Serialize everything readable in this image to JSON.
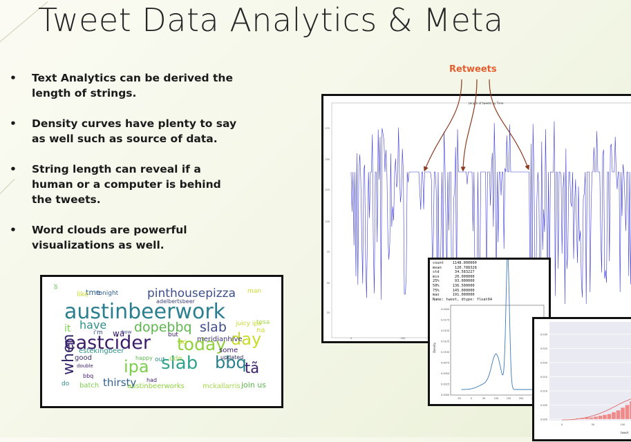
{
  "slide": {
    "title": "Tweet Data Analytics & Meta",
    "bullets": [
      "Text Analytics can be derived the length of strings.",
      "Density curves have plenty to say as well such as source of data.",
      "String length can reveal if a human or a computer is behind the tweets.",
      "Word clouds are powerful visualizations as well."
    ],
    "annotation": "Retweets",
    "accent_color": "#e35e2e"
  },
  "timeseries": {
    "title": "Length of tweets by Time",
    "y_ticks": [
      "275",
      "250",
      "225",
      "100",
      "75",
      "50",
      "25"
    ],
    "x_ticks": [
      "0",
      "200",
      "400"
    ],
    "line_color": "#3b3bd6"
  },
  "stats": {
    "lines": [
      "count    1148.000000",
      "mean      120.788328",
      "std       34.583227",
      "min       20.000000",
      "25%       93.000000",
      "50%      136.500000",
      "75%      145.000000",
      "max      191.000000",
      "Name: tweet, dtype: float64"
    ],
    "density_y_ticks": [
      "0.0200",
      "0.0175",
      "0.0150",
      "0.0125",
      "0.0100",
      "0.0075",
      "0.0050",
      "0.0025",
      "0.0000"
    ],
    "density_x_ticks": [
      "-50",
      "0",
      "50",
      "100",
      "150",
      "200",
      "250"
    ],
    "density_ylabel": "Density"
  },
  "histogram": {
    "y_ticks": [
      "0.030",
      "0.025",
      "0.020",
      "0.015",
      "0.010",
      "0.005",
      "0.000"
    ],
    "x_ticks": [
      "0",
      "50",
      "100"
    ],
    "xlabel": "tweet"
  },
  "wordcloud": {
    "words": [
      {
        "t": "austinbeerwork",
        "c": "#2a7f8f"
      },
      {
        "t": "eastcider",
        "c": "#3b1c6b"
      },
      {
        "t": "pinthousepizza",
        "c": "#3d4f8a"
      },
      {
        "t": "dopebbq",
        "c": "#5ab54a"
      },
      {
        "t": "slab",
        "c": "#3f4d8a"
      },
      {
        "t": "today",
        "c": "#8fd23c"
      },
      {
        "t": "day",
        "c": "#c9dc2a"
      },
      {
        "t": "ipa",
        "c": "#7ccf4b"
      },
      {
        "t": "slab",
        "c": "#2fa48a"
      },
      {
        "t": "bbq",
        "c": "#27808c"
      },
      {
        "t": "thirsty",
        "c": "#31628c"
      },
      {
        "t": "when",
        "c": "#35296b"
      },
      {
        "t": "have",
        "c": "#2f8f8a"
      },
      {
        "t": "meridianhive",
        "c": "#3b2f6e"
      },
      {
        "t": "tonight",
        "c": "#2f5e8c"
      },
      {
        "t": "tme",
        "c": "#2f5e8c"
      },
      {
        "t": "adelbertsbeer",
        "c": "#3d3f7a"
      },
      {
        "t": "austinbeerworks",
        "c": "#8fd23c"
      },
      {
        "t": "mckallarris",
        "c": "#a6d84a"
      },
      {
        "t": "join us",
        "c": "#5ab54a"
      },
      {
        "t": "tã",
        "c": "#3b1c6b"
      },
      {
        "t": "good",
        "c": "#35296b"
      },
      {
        "t": "updated",
        "c": "#2a2a5a"
      },
      {
        "t": "some",
        "c": "#3b1c6b"
      },
      {
        "t": "man",
        "c": "#c9dc2a"
      },
      {
        "t": "it",
        "c": "#7ccf4b"
      },
      {
        "t": "wa",
        "c": "#3b1c6b"
      },
      {
        "t": "ode",
        "c": "#a6d84a"
      },
      {
        "t": "bbq",
        "c": "#3b1c6b"
      },
      {
        "t": "batch",
        "c": "#7ccf4b"
      },
      {
        "t": "had",
        "c": "#3b1c6b"
      },
      {
        "t": "so",
        "c": "#c9dc2a"
      },
      {
        "t": "but",
        "c": "#3b1c6b"
      },
      {
        "t": "like",
        "c": "#c9dc2a"
      },
      {
        "t": "estekingbeer",
        "c": "#2f8f8a"
      },
      {
        "t": "happy",
        "c": "#5ab54a"
      },
      {
        "t": "out",
        "c": "#2f8f8a"
      },
      {
        "t": "double",
        "c": "#3b1c6b"
      },
      {
        "t": "i'm",
        "c": "#3d4f8a"
      },
      {
        "t": "how",
        "c": "#3d4f8a"
      },
      {
        "t": "do",
        "c": "#2f8f8a"
      },
      {
        "t": "juicy ipa",
        "c": "#c9dc2a"
      },
      {
        "t": "tosa",
        "c": "#a6d84a"
      },
      {
        "t": "na",
        "c": "#c9dc2a"
      },
      {
        "t": "one",
        "c": "#5ab54a"
      }
    ]
  }
}
